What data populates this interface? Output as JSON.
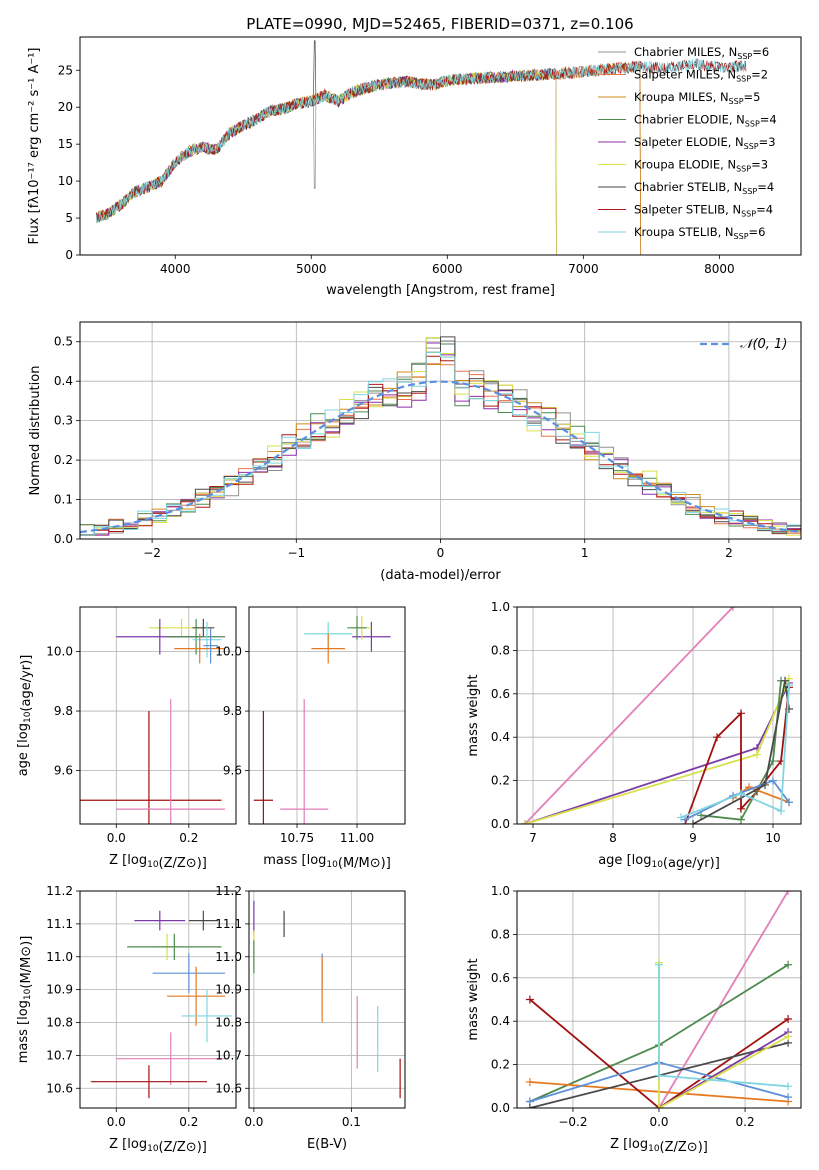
{
  "figure_title": "PLATE=0990, MJD=52465, FIBERID=0371, z=0.106",
  "colors": {
    "Chabrier MILES": "#909090",
    "Salpeter MILES": "#e8734a",
    "Kroupa MILES": "#d28a1e",
    "Chabrier ELODIE": "#4f8a4f",
    "Salpeter ELODIE": "#8e2ca8",
    "Kroupa ELODIE": "#d8e04a",
    "Chabrier STELIB": "#4a4a4a",
    "Salpeter STELIB": "#b01818",
    "Kroupa STELIB": "#7fd6e0",
    "normal_curve": "#5b8fe0",
    "pink": "#e37fb8",
    "orange": "#e67a22",
    "blue": "#5e90d8",
    "purple": "#7a3aa8",
    "darkred": "#a01010"
  },
  "chart_data": [
    {
      "id": "spectrum",
      "type": "line",
      "title": "PLATE=0990, MJD=52465, FIBERID=0371, z=0.106",
      "xlabel": "wavelength [Angstrom, rest frame]",
      "ylabel": "Flux [fλ10⁻¹⁷ erg cm⁻² s⁻¹ A⁻¹]",
      "xlim": [
        3300,
        8600
      ],
      "ylim": [
        0,
        29.5
      ],
      "xticks": [
        4000,
        5000,
        6000,
        7000,
        8000
      ],
      "yticks": [
        0,
        5,
        10,
        15,
        20,
        25
      ],
      "grid": false,
      "legend_position": "top-right",
      "continuum_knots": [
        [
          3400,
          5.0
        ],
        [
          3500,
          5.5
        ],
        [
          3600,
          6.8
        ],
        [
          3700,
          8.5
        ],
        [
          3800,
          9.2
        ],
        [
          3900,
          10.0
        ],
        [
          4000,
          12.5
        ],
        [
          4100,
          14.0
        ],
        [
          4200,
          14.6
        ],
        [
          4300,
          14.2
        ],
        [
          4400,
          16.5
        ],
        [
          4500,
          17.5
        ],
        [
          4600,
          18.4
        ],
        [
          4700,
          19.5
        ],
        [
          4800,
          19.8
        ],
        [
          4900,
          20.5
        ],
        [
          5000,
          20.8
        ],
        [
          5100,
          21.6
        ],
        [
          5200,
          20.8
        ],
        [
          5300,
          22.0
        ],
        [
          5400,
          22.6
        ],
        [
          5500,
          23.0
        ],
        [
          5600,
          23.3
        ],
        [
          5700,
          23.5
        ],
        [
          5800,
          23.2
        ],
        [
          5900,
          23.0
        ],
        [
          6000,
          23.6
        ],
        [
          6200,
          23.9
        ],
        [
          6400,
          24.1
        ],
        [
          6600,
          24.3
        ],
        [
          6800,
          24.5
        ],
        [
          7000,
          24.8
        ],
        [
          7200,
          25.2
        ],
        [
          7400,
          25.5
        ],
        [
          7600,
          25.3
        ],
        [
          7800,
          25.8
        ],
        [
          8000,
          25.4
        ],
        [
          8200,
          25.6
        ]
      ],
      "series": [
        {
          "name": "Chabrier MILES, N_SSP=6",
          "label": "Chabrier MILES, N",
          "sub": "SSP",
          "tail": "=6",
          "color": "#909090",
          "xmax": 7420
        },
        {
          "name": "Salpeter MILES, N_SSP=2",
          "label": "Salpeter MILES, N",
          "sub": "SSP",
          "tail": "=2",
          "color": "#e8734a",
          "xmax": 7420
        },
        {
          "name": "Kroupa MILES, N_SSP=5",
          "label": "Kroupa MILES, N",
          "sub": "SSP",
          "tail": "=5",
          "color": "#d28a1e",
          "xmax": 7420
        },
        {
          "name": "Chabrier ELODIE, N_SSP=4",
          "label": "Chabrier ELODIE, N",
          "sub": "SSP",
          "tail": "=4",
          "color": "#4f8a4f",
          "xmax": 6800
        },
        {
          "name": "Salpeter ELODIE, N_SSP=3",
          "label": "Salpeter ELODIE, N",
          "sub": "SSP",
          "tail": "=3",
          "color": "#8e2ca8",
          "xmax": 6800
        },
        {
          "name": "Kroupa ELODIE, N_SSP=3",
          "label": "Kroupa ELODIE, N",
          "sub": "SSP",
          "tail": "=3",
          "color": "#d8e04a",
          "xmax": 6800
        },
        {
          "name": "Chabrier STELIB, N_SSP=4",
          "label": "Chabrier STELIB, N",
          "sub": "SSP",
          "tail": "=4",
          "color": "#4a4a4a",
          "xmax": 8200
        },
        {
          "name": "Salpeter STELIB, N_SSP=4",
          "label": "Salpeter STELIB, N",
          "sub": "SSP",
          "tail": "=4",
          "color": "#b01818",
          "xmax": 8200
        },
        {
          "name": "Kroupa STELIB, N_SSP=6",
          "label": "Kroupa STELIB, N",
          "sub": "SSP",
          "tail": "=6",
          "color": "#7fd6e0",
          "xmax": 8200
        }
      ]
    },
    {
      "id": "residuals",
      "type": "histogram",
      "xlabel": "(data-model)/error",
      "ylabel": "Normed distribution",
      "xlim": [
        -2.5,
        2.5
      ],
      "ylim": [
        0,
        0.55
      ],
      "xticks": [
        -2,
        -1,
        0,
        1,
        2
      ],
      "yticks": [
        0.0,
        0.1,
        0.2,
        0.3,
        0.4,
        0.5
      ],
      "grid": true,
      "bin_width": 0.1,
      "legend_position": "top-right",
      "legend": "𝒩(0, 1)",
      "curve": {
        "type": "normal",
        "mean": 0,
        "sigma": 1,
        "color": "#5b8fe0"
      }
    },
    {
      "id": "age_vs_Z",
      "type": "errorbar",
      "xlabel": "Z [log10(Z/Z⊙)]",
      "ylabel": "age  [log10(age/yr)]",
      "xlim": [
        -0.1,
        0.33
      ],
      "ylim": [
        9.42,
        10.15
      ],
      "xticks": [
        0.0,
        0.2
      ],
      "yticks": [
        9.6,
        9.8,
        10.0
      ],
      "grid": true,
      "points": [
        {
          "color": "#d8e04a",
          "x": 0.18,
          "xerr": 0.09,
          "y": 10.08,
          "yerr": 0.03
        },
        {
          "color": "#4a4a4a",
          "x": 0.24,
          "xerr": 0.03,
          "y": 10.08,
          "yerr": 0.03
        },
        {
          "color": "#7a3aa8",
          "x": 0.12,
          "xerr": 0.12,
          "y": 10.05,
          "yerr": 0.06
        },
        {
          "color": "#4f8a4f",
          "x": 0.22,
          "xerr": 0.08,
          "y": 10.05,
          "yerr": 0.06
        },
        {
          "color": "#7fd6e0",
          "x": 0.25,
          "xerr": 0.04,
          "y": 10.04,
          "yerr": 0.06
        },
        {
          "color": "#e67a22",
          "x": 0.23,
          "xerr": 0.07,
          "y": 10.01,
          "yerr": 0.05
        },
        {
          "color": "#5e90d8",
          "x": 0.26,
          "xerr": 0.02,
          "y": 10.02,
          "yerr": 0.06
        },
        {
          "color": "#a01010",
          "x": 0.09,
          "xerr": 0.2,
          "y": 9.5,
          "yerr": 0.3
        },
        {
          "color": "#e37fb8",
          "x": 0.15,
          "xerr": 0.15,
          "y": 9.47,
          "yerr": 0.37
        }
      ]
    },
    {
      "id": "age_vs_mass",
      "type": "errorbar",
      "xlabel": "mass [log10(M/M⊙)]",
      "ylabel": "",
      "xlim": [
        10.55,
        11.2
      ],
      "ylim": [
        9.42,
        10.15
      ],
      "xticks": [
        10.75,
        11.0
      ],
      "yticks": [
        9.6,
        9.8,
        10.0
      ],
      "grid": true,
      "points": [
        {
          "color": "#7fd6e0",
          "x": 10.88,
          "xerr": 0.1,
          "y": 10.06,
          "yerr": 0.04
        },
        {
          "color": "#7a3aa8",
          "x": 11.06,
          "xerr": 0.08,
          "y": 10.05,
          "yerr": 0.05
        },
        {
          "color": "#d8e04a",
          "x": 11.02,
          "xerr": 0.04,
          "y": 10.08,
          "yerr": 0.04
        },
        {
          "color": "#4f8a4f",
          "x": 11.0,
          "xerr": 0.04,
          "y": 10.08,
          "yerr": 0.04
        },
        {
          "color": "#e67a22",
          "x": 10.88,
          "xerr": 0.07,
          "y": 10.01,
          "yerr": 0.05
        },
        {
          "color": "#a01010",
          "x": 10.61,
          "xerr": 0.04,
          "y": 9.5,
          "yerr": 0.3
        },
        {
          "color": "#e37fb8",
          "x": 10.78,
          "xerr": 0.1,
          "y": 9.47,
          "yerr": 0.37
        }
      ]
    },
    {
      "id": "massweight_vs_age",
      "type": "line",
      "xlabel": "age  [log10(age/yr)]",
      "ylabel": "mass weight",
      "xlim": [
        6.8,
        10.35
      ],
      "ylim": [
        0.0,
        1.0
      ],
      "xticks": [
        7,
        8,
        9,
        10
      ],
      "yticks": [
        0.0,
        0.2,
        0.4,
        0.6,
        0.8,
        1.0
      ],
      "grid": true,
      "series": [
        {
          "color": "#e37fb8",
          "x": [
            6.9,
            9.5
          ],
          "y": [
            0.0,
            1.0
          ]
        },
        {
          "color": "#7a3aa8",
          "x": [
            6.9,
            9.8,
            10.2
          ],
          "y": [
            0.0,
            0.35,
            0.65
          ]
        },
        {
          "color": "#d8e04a",
          "x": [
            6.9,
            9.8,
            10.2
          ],
          "y": [
            0.0,
            0.32,
            0.67
          ]
        },
        {
          "color": "#a01010",
          "x": [
            8.9,
            9.3,
            9.6,
            9.6,
            9.8,
            10.1,
            10.2
          ],
          "y": [
            0.0,
            0.4,
            0.51,
            0.07,
            0.15,
            0.29,
            0.63
          ]
        },
        {
          "color": "#e67a22",
          "x": [
            9.5,
            9.7,
            10.2
          ],
          "y": [
            0.12,
            0.17,
            0.1
          ]
        },
        {
          "color": "#4f8a4f",
          "x": [
            9.1,
            9.6,
            10.0,
            10.1
          ],
          "y": [
            0.04,
            0.02,
            0.29,
            0.66
          ]
        },
        {
          "color": "#5e90d8",
          "x": [
            8.9,
            9.5,
            10.0,
            10.2
          ],
          "y": [
            0.02,
            0.13,
            0.2,
            0.1
          ]
        },
        {
          "color": "#4a4a4a",
          "x": [
            9.0,
            9.9,
            10.15,
            10.2
          ],
          "y": [
            0.0,
            0.18,
            0.66,
            0.53
          ]
        },
        {
          "color": "#7fd6e0",
          "x": [
            8.85,
            9.6,
            10.1,
            10.2
          ],
          "y": [
            0.03,
            0.14,
            0.06,
            0.64
          ]
        }
      ]
    },
    {
      "id": "mass_vs_Z",
      "type": "errorbar",
      "xlabel": "Z [log10(Z/Z⊙)]",
      "ylabel": "mass [log10(M/M⊙)]",
      "xlim": [
        -0.1,
        0.33
      ],
      "ylim": [
        10.54,
        11.2
      ],
      "xticks": [
        0.0,
        0.2
      ],
      "yticks": [
        10.6,
        10.7,
        10.8,
        10.9,
        11.0,
        11.1,
        11.2
      ],
      "grid": true,
      "points": [
        {
          "color": "#7a3aa8",
          "x": 0.12,
          "xerr": 0.07,
          "y": 11.11,
          "yerr": 0.03
        },
        {
          "color": "#4a4a4a",
          "x": 0.24,
          "xerr": 0.04,
          "y": 11.11,
          "yerr": 0.03
        },
        {
          "color": "#d8e04a",
          "x": 0.14,
          "xerr": 0.04,
          "y": 11.03,
          "yerr": 0.04
        },
        {
          "color": "#4f8a4f",
          "x": 0.16,
          "xerr": 0.13,
          "y": 11.03,
          "yerr": 0.04
        },
        {
          "color": "#5e90d8",
          "x": 0.2,
          "xerr": 0.1,
          "y": 10.95,
          "yerr": 0.06
        },
        {
          "color": "#e67a22",
          "x": 0.22,
          "xerr": 0.08,
          "y": 10.88,
          "yerr": 0.09
        },
        {
          "color": "#7fd6e0",
          "x": 0.25,
          "xerr": 0.07,
          "y": 10.82,
          "yerr": 0.08
        },
        {
          "color": "#e37fb8",
          "x": 0.15,
          "xerr": 0.15,
          "y": 10.69,
          "yerr": 0.08
        },
        {
          "color": "#a01010",
          "x": 0.09,
          "xerr": 0.16,
          "y": 10.62,
          "yerr": 0.05
        }
      ]
    },
    {
      "id": "mass_vs_ebv",
      "type": "errorbar",
      "xlabel": "E(B-V)",
      "ylabel": "",
      "xlim": [
        -0.005,
        0.155
      ],
      "ylim": [
        10.54,
        11.2
      ],
      "xticks": [
        0.0,
        0.1
      ],
      "yticks": [
        10.6,
        10.7,
        10.8,
        10.9,
        11.0,
        11.1,
        11.2
      ],
      "grid": true,
      "points": [
        {
          "color": "#7a3aa8",
          "x": 0.0,
          "xerr": 0.0,
          "y": 11.12,
          "yerr": 0.05
        },
        {
          "color": "#4a4a4a",
          "x": 0.031,
          "xerr": 0.0,
          "y": 11.1,
          "yerr": 0.04
        },
        {
          "color": "#d8e04a",
          "x": 0.0,
          "xerr": 0.0,
          "y": 11.02,
          "yerr": 0.06
        },
        {
          "color": "#4f8a4f",
          "x": 0.0,
          "xerr": 0.0,
          "y": 11.0,
          "yerr": 0.05
        },
        {
          "color": "#5e90d8",
          "x": 0.07,
          "xerr": 0.0,
          "y": 10.95,
          "yerr": 0.06
        },
        {
          "color": "#e67a22",
          "x": 0.07,
          "xerr": 0.0,
          "y": 10.9,
          "yerr": 0.1
        },
        {
          "color": "#e37fb8",
          "x": 0.106,
          "xerr": 0.0,
          "y": 10.77,
          "yerr": 0.11
        },
        {
          "color": "#7fd6e0",
          "x": 0.127,
          "xerr": 0.0,
          "y": 10.75,
          "yerr": 0.1
        },
        {
          "color": "#a01010",
          "x": 0.15,
          "xerr": 0.0,
          "y": 10.63,
          "yerr": 0.06
        }
      ]
    },
    {
      "id": "massweight_vs_Z",
      "type": "line",
      "xlabel": "Z [log10(Z/Z⊙)]",
      "ylabel": "mass weight",
      "xlim": [
        -0.33,
        0.33
      ],
      "ylim": [
        0.0,
        1.0
      ],
      "xticks": [
        -0.2,
        0.0,
        0.2
      ],
      "yticks": [
        0.0,
        0.2,
        0.4,
        0.6,
        0.8,
        1.0
      ],
      "grid": true,
      "series": [
        {
          "color": "#e37fb8",
          "x": [
            0.0,
            0.3
          ],
          "y": [
            0.0,
            1.0
          ]
        },
        {
          "color": "#4f8a4f",
          "x": [
            -0.3,
            0.0,
            0.3
          ],
          "y": [
            0.03,
            0.29,
            0.66
          ]
        },
        {
          "color": "#e67a22",
          "x": [
            -0.3,
            0.3
          ],
          "y": [
            0.12,
            0.03
          ]
        },
        {
          "color": "#a01010",
          "x": [
            -0.3,
            0.0,
            0.3
          ],
          "y": [
            0.5,
            0.0,
            0.41
          ]
        },
        {
          "color": "#5e90d8",
          "x": [
            -0.3,
            0.0,
            0.3
          ],
          "y": [
            0.03,
            0.21,
            0.05
          ]
        },
        {
          "color": "#4a4a4a",
          "x": [
            -0.3,
            0.3
          ],
          "y": [
            0.0,
            0.3
          ]
        },
        {
          "color": "#7a3aa8",
          "x": [
            0.0,
            0.3
          ],
          "y": [
            0.0,
            0.35
          ]
        },
        {
          "color": "#d8e04a",
          "x": [
            0.0,
            0.0,
            0.3
          ],
          "y": [
            0.67,
            0.0,
            0.33
          ]
        },
        {
          "color": "#7fd6e0",
          "x": [
            0.0,
            0.0,
            0.3
          ],
          "y": [
            0.66,
            0.15,
            0.1
          ]
        }
      ]
    }
  ]
}
